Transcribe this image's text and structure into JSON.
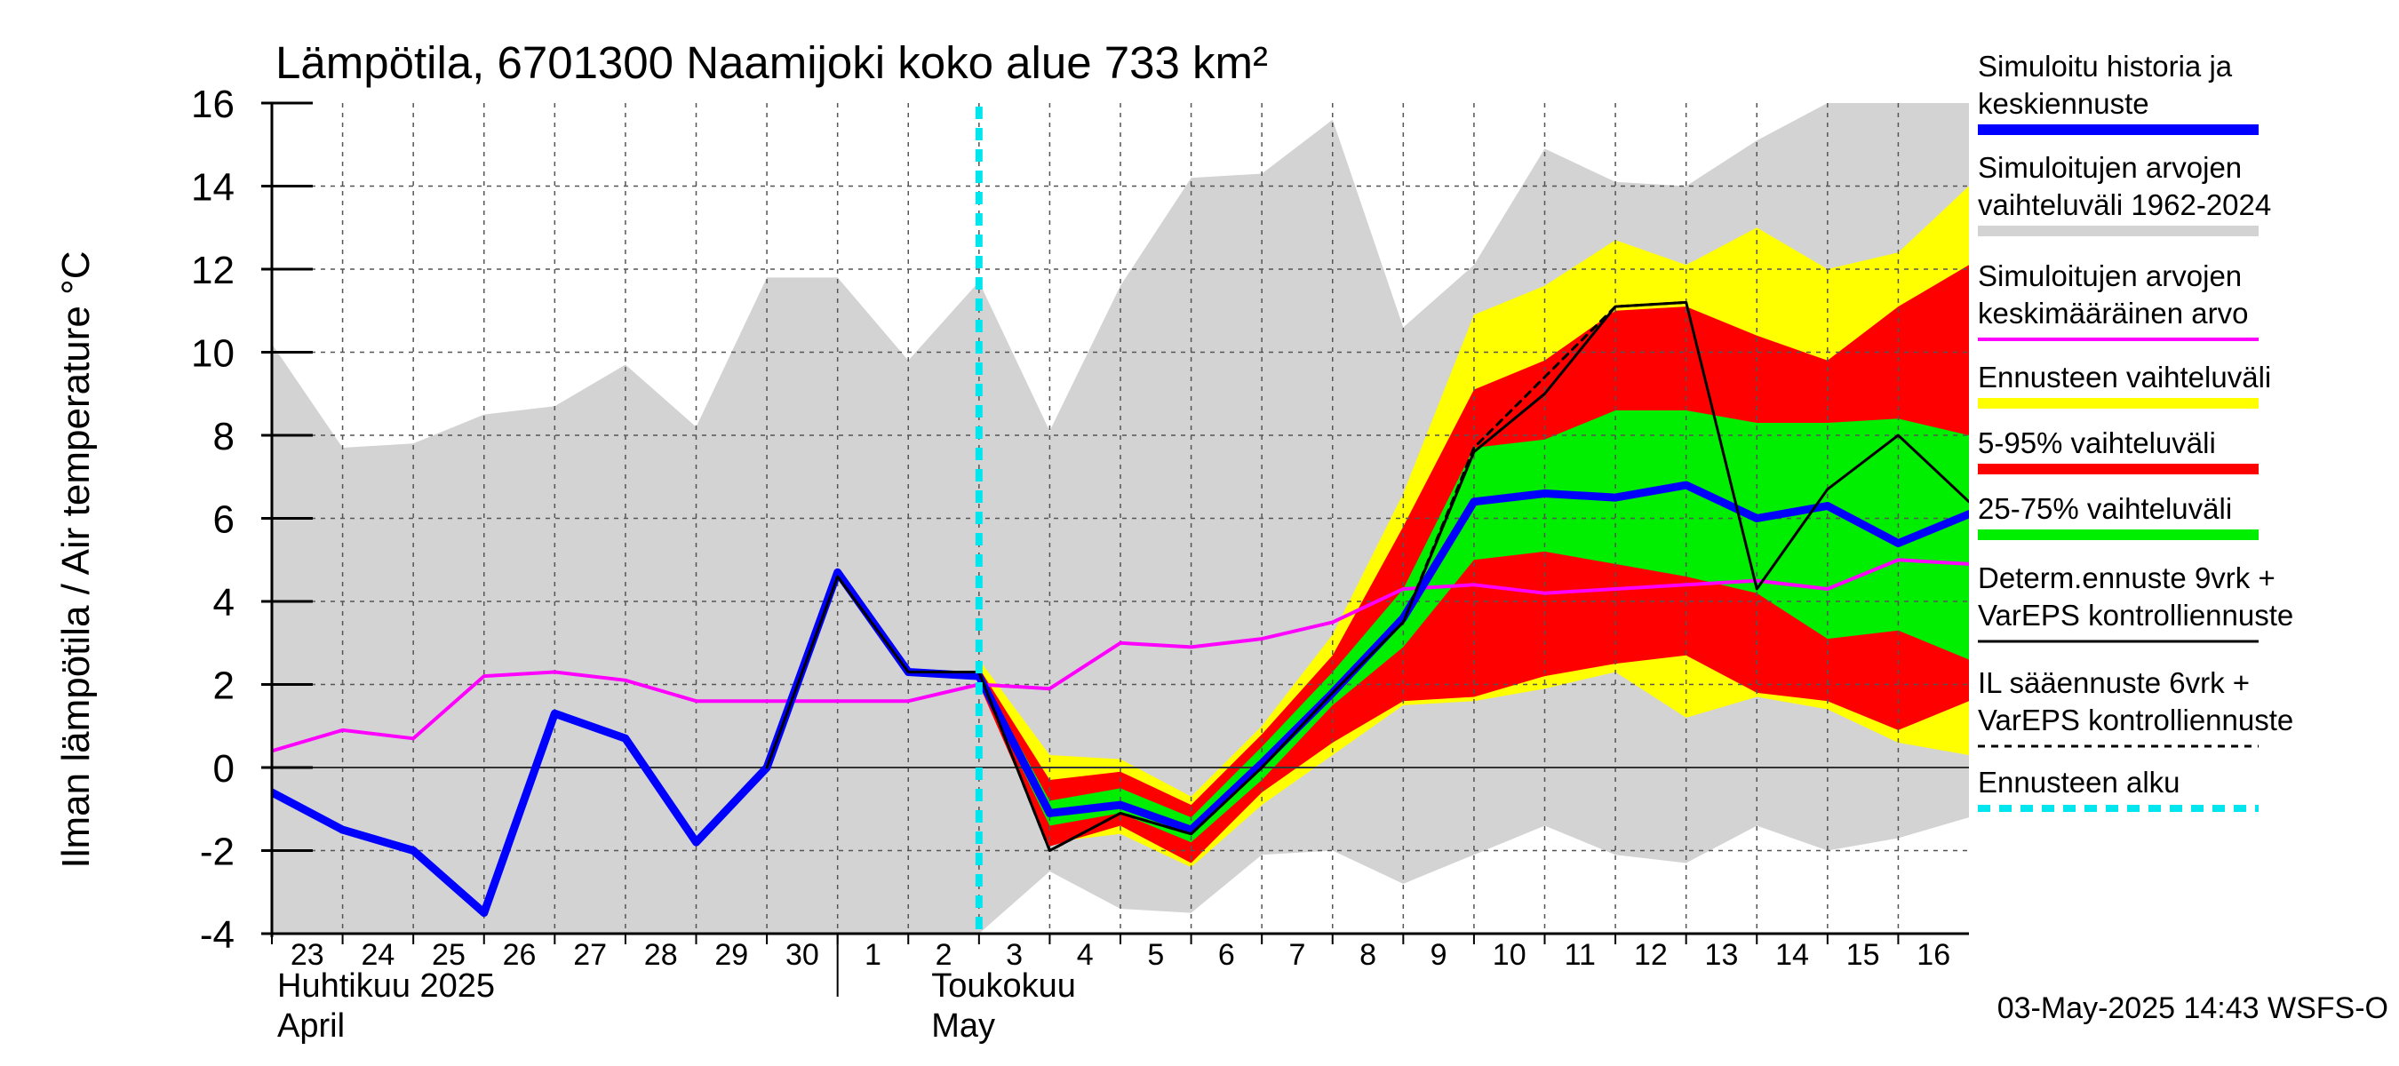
{
  "chart_data": {
    "type": "line",
    "title": "Lämpötila, 6701300 Naamijoki koko alue 733 km²",
    "ylabel": "Ilman lämpötila / Air temperature   °C",
    "ylim": [
      -4,
      16
    ],
    "yticks": [
      -4,
      -2,
      0,
      2,
      4,
      6,
      8,
      10,
      12,
      14,
      16
    ],
    "xlim": [
      0,
      24
    ],
    "x_tick_labels": [
      "23",
      "24",
      "25",
      "26",
      "27",
      "28",
      "29",
      "30",
      "1",
      "2",
      "3",
      "4",
      "5",
      "6",
      "7",
      "8",
      "9",
      "10",
      "11",
      "12",
      "13",
      "14",
      "15",
      "16"
    ],
    "month_labels": [
      {
        "fi": "Huhtikuu  2025",
        "en": "April",
        "day_index": 0
      },
      {
        "fi": "Toukokuu",
        "en": "May",
        "day_index": 9
      }
    ],
    "forecast_start_day_index": 10,
    "timestamp": "03-May-2025 14:43 WSFS-O",
    "legend": [
      {
        "key": "sim",
        "label_lines": [
          "Simuloitu historia ja",
          "keskiennuste"
        ],
        "color": "#0000ff",
        "style": "thick"
      },
      {
        "key": "hist_range",
        "label_lines": [
          "Simuloitujen arvojen",
          "vaihteluväli 1962-2024"
        ],
        "color": "#d3d3d3",
        "style": "thick"
      },
      {
        "key": "hist_mean",
        "label_lines": [
          "Simuloitujen arvojen",
          "keskimääräinen arvo"
        ],
        "color": "#ff00ff",
        "style": "medium"
      },
      {
        "key": "fc_range",
        "label_lines": [
          "Ennusteen vaihteluväli"
        ],
        "color": "#ffff00",
        "style": "thick"
      },
      {
        "key": "p5_95",
        "label_lines": [
          "5-95% vaihteluväli"
        ],
        "color": "#ff0000",
        "style": "thick"
      },
      {
        "key": "p25_75",
        "label_lines": [
          "25-75% vaihteluväli"
        ],
        "color": "#00ee00",
        "style": "thick"
      },
      {
        "key": "determ",
        "label_lines": [
          "Determ.ennuste 9vrk +",
          "VarEPS kontrolliennuste"
        ],
        "color": "#000000",
        "style": "thin"
      },
      {
        "key": "il",
        "label_lines": [
          "IL sääennuste 6vrk  +",
          "  VarEPS kontrolliennuste"
        ],
        "color": "#000000",
        "style": "dashed"
      },
      {
        "key": "fc_start",
        "label_lines": [
          "Ennusteen alku"
        ],
        "color": "#00e5ee",
        "style": "dotted"
      }
    ],
    "series": {
      "hist_range": {
        "x": [
          0,
          1,
          2,
          3,
          4,
          5,
          6,
          7,
          8,
          9,
          10,
          11,
          12,
          13,
          14,
          15,
          16,
          17,
          18,
          19,
          20,
          21,
          22,
          23,
          24
        ],
        "upper": [
          10.2,
          7.7,
          7.8,
          8.5,
          8.7,
          9.7,
          8.2,
          11.8,
          11.8,
          9.8,
          11.7,
          8.1,
          11.6,
          14.2,
          14.3,
          15.6,
          10.6,
          12.1,
          14.9,
          14.1,
          14.0,
          15.1,
          16.0,
          16.0,
          16.0
        ],
        "lower": [
          -4,
          -4,
          -4,
          -4,
          -4,
          -4,
          -4,
          -4,
          -4,
          -4,
          -4,
          -2.5,
          -3.4,
          -3.5,
          -2.1,
          -2.0,
          -2.8,
          -2.1,
          -1.4,
          -2.1,
          -2.3,
          -1.4,
          -2.0,
          -1.7,
          -1.2
        ]
      },
      "fc_range": {
        "x": [
          10,
          11,
          12,
          13,
          14,
          15,
          16,
          17,
          18,
          19,
          20,
          21,
          22,
          23,
          24
        ],
        "upper": [
          2.6,
          0.3,
          0.2,
          -0.7,
          1.0,
          3.2,
          6.6,
          10.9,
          11.6,
          12.7,
          12.1,
          13.0,
          12.0,
          12.4,
          14.0
        ],
        "lower": [
          2.0,
          -1.8,
          -1.6,
          -2.4,
          -0.9,
          0.3,
          1.5,
          1.6,
          1.9,
          2.3,
          1.2,
          1.7,
          1.4,
          0.6,
          0.3
        ]
      },
      "p5_95": {
        "x": [
          10,
          11,
          12,
          13,
          14,
          15,
          16,
          17,
          18,
          19,
          20,
          21,
          22,
          23,
          24
        ],
        "upper": [
          2.4,
          -0.3,
          -0.1,
          -0.9,
          0.8,
          2.7,
          5.8,
          9.1,
          9.8,
          11.0,
          11.1,
          10.4,
          9.8,
          11.1,
          12.1
        ],
        "lower": [
          2.0,
          -1.9,
          -1.4,
          -2.3,
          -0.6,
          0.6,
          1.6,
          1.7,
          2.2,
          2.5,
          2.7,
          1.8,
          1.6,
          0.9,
          1.6
        ]
      },
      "p25_75": {
        "x": [
          10,
          11,
          12,
          13,
          14,
          15,
          16,
          17,
          18,
          19,
          20,
          21,
          22,
          23,
          24
        ],
        "upper": [
          2.3,
          -0.8,
          -0.5,
          -1.2,
          0.5,
          2.3,
          4.3,
          7.7,
          7.9,
          8.6,
          8.6,
          8.3,
          8.3,
          8.4,
          8.0
        ],
        "lower": [
          2.1,
          -1.4,
          -1.1,
          -1.8,
          -0.3,
          1.5,
          2.9,
          5.0,
          5.2,
          4.9,
          4.6,
          4.2,
          3.1,
          3.3,
          2.6
        ]
      },
      "hist_mean": {
        "x": [
          0,
          1,
          2,
          3,
          4,
          5,
          6,
          7,
          8,
          9,
          10,
          11,
          12,
          13,
          14,
          15,
          16,
          17,
          18,
          19,
          20,
          21,
          22,
          23,
          24
        ],
        "y": [
          0.4,
          0.9,
          0.7,
          2.2,
          2.3,
          2.1,
          1.6,
          1.6,
          1.6,
          1.6,
          2.0,
          1.9,
          3.0,
          2.9,
          3.1,
          3.5,
          4.3,
          4.4,
          4.2,
          4.3,
          4.4,
          4.5,
          4.3,
          5.0,
          4.9
        ]
      },
      "determ": {
        "x": [
          7,
          8,
          9,
          10,
          11,
          12,
          13,
          14,
          15,
          16,
          17,
          18,
          19,
          20,
          21,
          22,
          23,
          24
        ],
        "y": [
          0.0,
          4.6,
          2.3,
          2.3,
          -2.0,
          -1.1,
          -1.6,
          0.0,
          1.8,
          3.5,
          7.6,
          9.0,
          11.1,
          11.2,
          4.3,
          6.7,
          8.0,
          6.4
        ]
      },
      "il": {
        "x": [
          10,
          11,
          12,
          13,
          14,
          15,
          16,
          17,
          18,
          19,
          20
        ],
        "y": [
          2.3,
          -2.0,
          -1.1,
          -1.6,
          0.0,
          1.8,
          3.5,
          7.7,
          9.4,
          11.1,
          11.2
        ]
      },
      "sim": {
        "x": [
          0,
          1,
          2,
          3,
          4,
          5,
          6,
          7,
          8,
          9,
          10,
          11,
          12,
          13,
          14,
          15,
          16,
          17,
          18,
          19,
          20,
          21,
          22,
          23,
          24
        ],
        "y": [
          -0.6,
          -1.5,
          -2.0,
          -3.5,
          1.3,
          0.7,
          -1.8,
          0.0,
          4.7,
          2.3,
          2.2,
          -1.1,
          -0.9,
          -1.5,
          0.1,
          1.8,
          3.6,
          6.4,
          6.6,
          6.5,
          6.8,
          6.0,
          6.3,
          5.4,
          6.1
        ]
      }
    }
  }
}
